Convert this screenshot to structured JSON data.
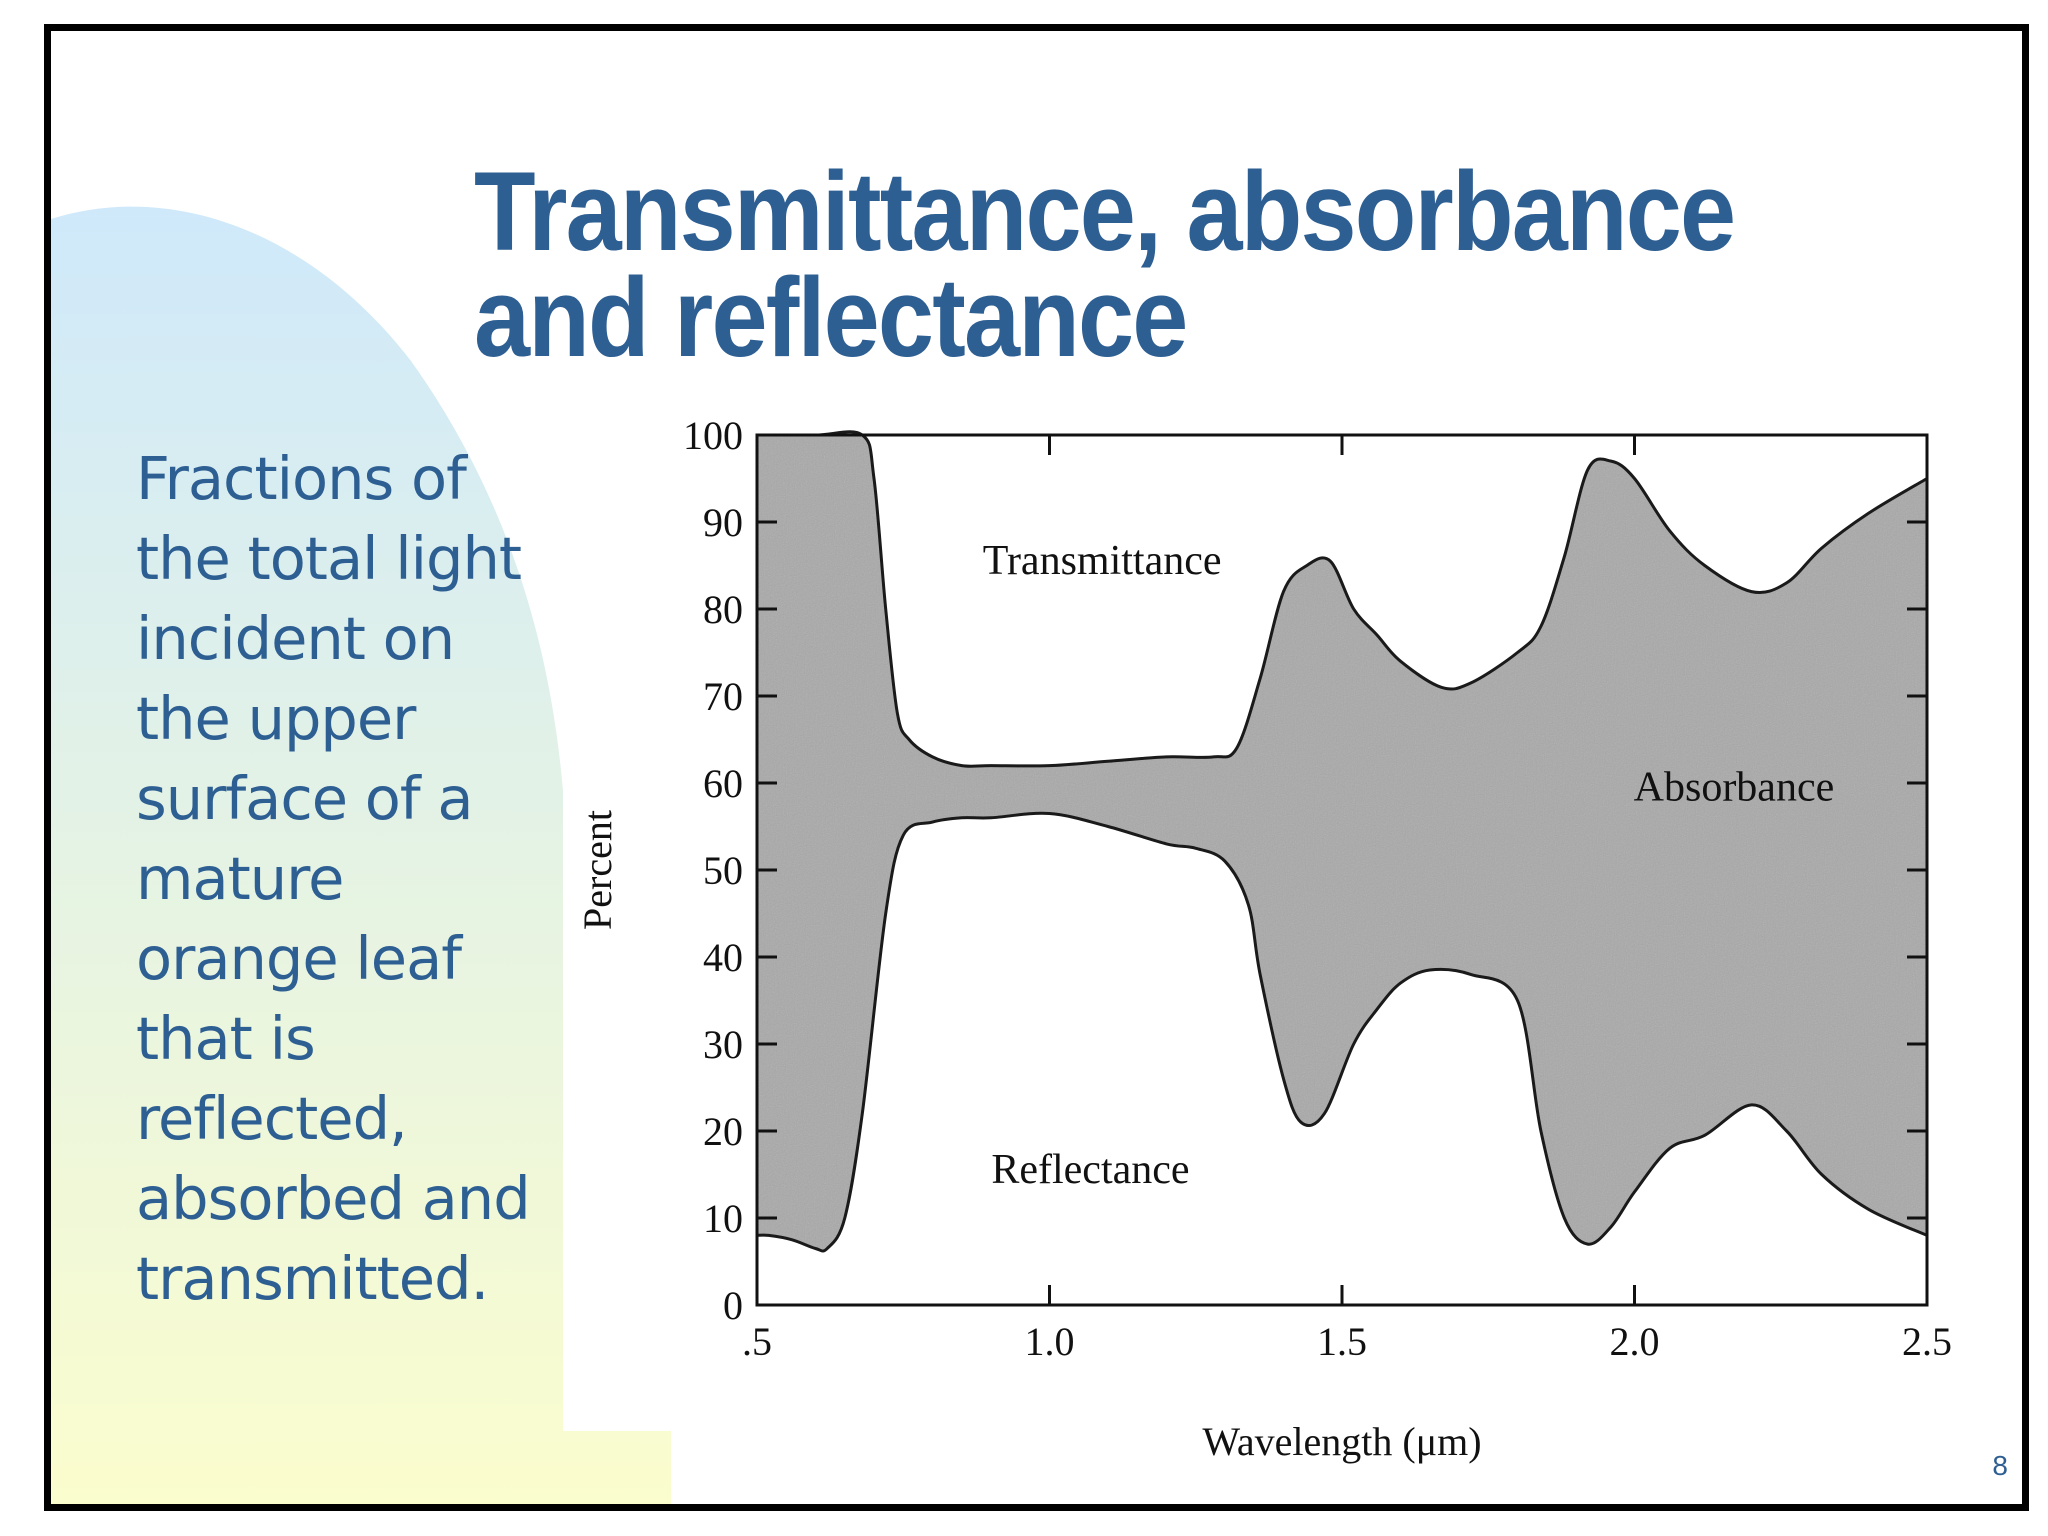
{
  "slide": {
    "title_lines": [
      "Transmittance, absorbance",
      "and reflectance"
    ],
    "description_lines": [
      "Fractions of",
      "the total light",
      "incident on",
      "the upper",
      "surface of a",
      "mature",
      "orange leaf",
      "that is",
      "reflected,",
      "absorbed and",
      "transmitted."
    ],
    "page_number": "8",
    "colors": {
      "title": "#2e5f93",
      "description": "#2e5f93",
      "page_number": "#2e5f93",
      "gradient_top": "#cfe9fb",
      "gradient_bottom": "#fbfdcd",
      "absorbance_fill": "#a9a9a9"
    }
  },
  "chart_data": {
    "type": "area",
    "xlabel": "Wavelength (μm)",
    "ylabel": "Percent",
    "xlim": [
      0.5,
      2.5
    ],
    "ylim": [
      0,
      100
    ],
    "x_ticks": [
      0.5,
      1.0,
      1.5,
      2.0,
      2.5
    ],
    "x_tick_labels": [
      ".5",
      "1.0",
      "1.5",
      "2.0",
      "2.5"
    ],
    "y_ticks": [
      0,
      10,
      20,
      30,
      40,
      50,
      60,
      70,
      80,
      90,
      100
    ],
    "y_tick_labels": [
      "0",
      "10",
      "20",
      "30",
      "40",
      "50",
      "60",
      "70",
      "80",
      "90",
      "100"
    ],
    "grid": false,
    "region_labels": [
      {
        "text": "Transmittance",
        "x": 1.09,
        "y": 84
      },
      {
        "text": "Absorbance",
        "x": 2.17,
        "y": 58
      },
      {
        "text": "Reflectance",
        "x": 1.07,
        "y": 14
      }
    ],
    "upper_boundary": {
      "x": [
        0.5,
        0.6,
        0.68,
        0.7,
        0.72,
        0.74,
        0.76,
        0.8,
        0.85,
        0.9,
        1.0,
        1.1,
        1.2,
        1.28,
        1.32,
        1.36,
        1.4,
        1.44,
        1.48,
        1.52,
        1.56,
        1.6,
        1.67,
        1.72,
        1.8,
        1.84,
        1.88,
        1.92,
        1.96,
        2.0,
        2.06,
        2.12,
        2.2,
        2.26,
        2.32,
        2.4,
        2.5
      ],
      "y": [
        100,
        100,
        100,
        95,
        80,
        68,
        65,
        63,
        62,
        62,
        62,
        62.5,
        63,
        63,
        64,
        72,
        82,
        85,
        85.5,
        80,
        77,
        74,
        71,
        71.5,
        75,
        78,
        86,
        96,
        97,
        95,
        89,
        85,
        82,
        83,
        87,
        91,
        95
      ]
    },
    "lower_boundary": {
      "x": [
        0.5,
        0.52,
        0.56,
        0.6,
        0.62,
        0.65,
        0.68,
        0.72,
        0.75,
        0.8,
        0.85,
        0.9,
        1.0,
        1.1,
        1.2,
        1.25,
        1.3,
        1.34,
        1.36,
        1.4,
        1.43,
        1.47,
        1.52,
        1.56,
        1.6,
        1.65,
        1.72,
        1.8,
        1.84,
        1.88,
        1.92,
        1.96,
        2.0,
        2.06,
        2.12,
        2.2,
        2.26,
        2.32,
        2.4,
        2.5
      ],
      "y": [
        8,
        8,
        7.5,
        6.5,
        6.5,
        10,
        22,
        45,
        54,
        55.5,
        56,
        56,
        56.5,
        55,
        53,
        52.5,
        51,
        46,
        38,
        26,
        21,
        22,
        30,
        34,
        37,
        38.5,
        38,
        35,
        20,
        10,
        7,
        9,
        13,
        18,
        19.5,
        23,
        20,
        15,
        11,
        8
      ]
    }
  }
}
